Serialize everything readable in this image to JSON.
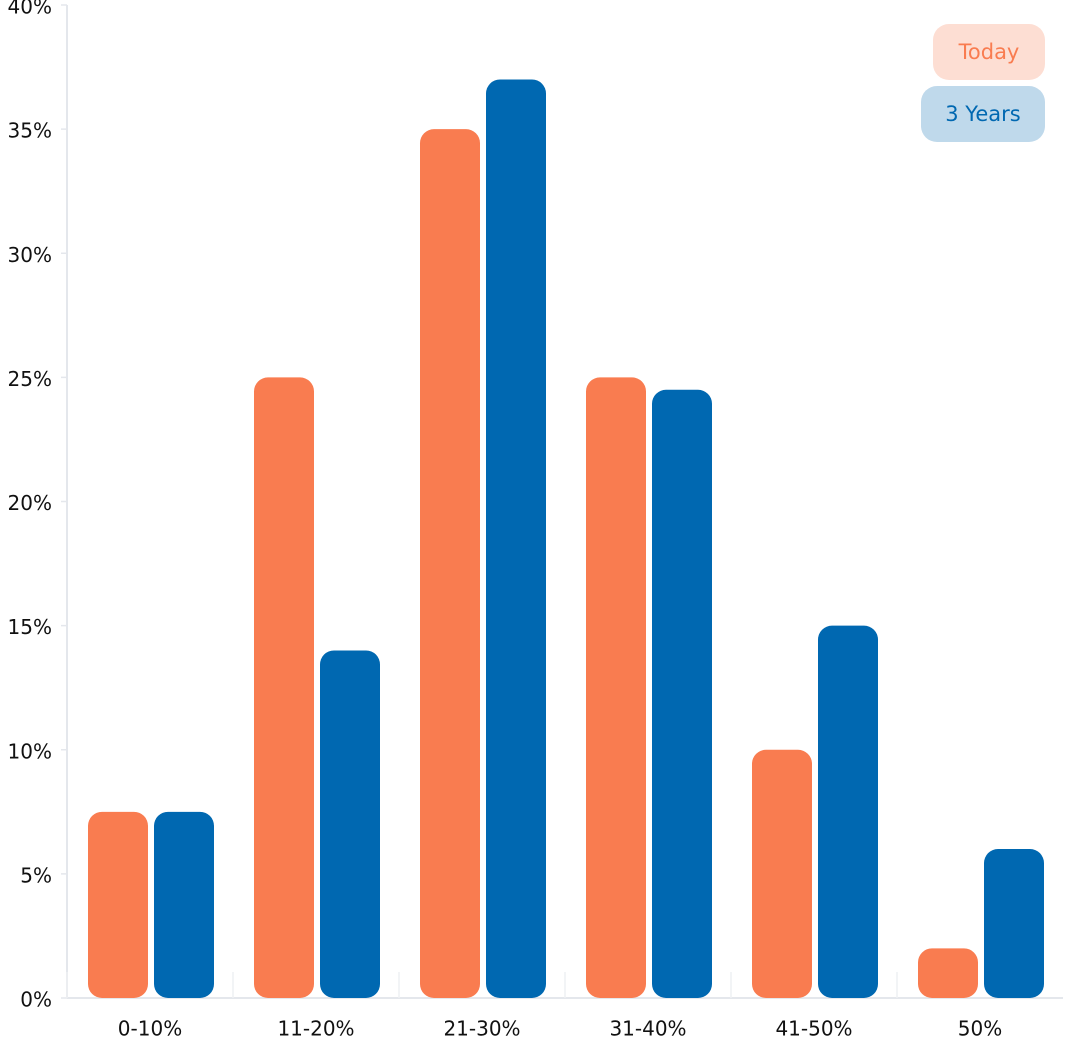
{
  "chart_data": {
    "type": "bar",
    "categories": [
      "0-10%",
      "11-20%",
      "21-30%",
      "31-40%",
      "41-50%",
      "50%"
    ],
    "series": [
      {
        "name": "Today",
        "color": "#f97c50",
        "values": [
          7.5,
          25,
          35,
          25,
          10,
          2
        ]
      },
      {
        "name": "3 Years",
        "color": "#0068b1",
        "values": [
          7.5,
          14,
          37,
          24.5,
          15,
          6
        ]
      }
    ],
    "ylim": [
      0,
      40
    ],
    "yticks": [
      {
        "value": 0,
        "label": "0%"
      },
      {
        "value": 5,
        "label": "5%"
      },
      {
        "value": 10,
        "label": "10%"
      },
      {
        "value": 15,
        "label": "15%"
      },
      {
        "value": 20,
        "label": "20%"
      },
      {
        "value": 25,
        "label": "25%"
      },
      {
        "value": 30,
        "label": "30%"
      },
      {
        "value": 35,
        "label": "35%"
      },
      {
        "value": 40,
        "label": "40%"
      }
    ],
    "legend_position": "top-right"
  }
}
